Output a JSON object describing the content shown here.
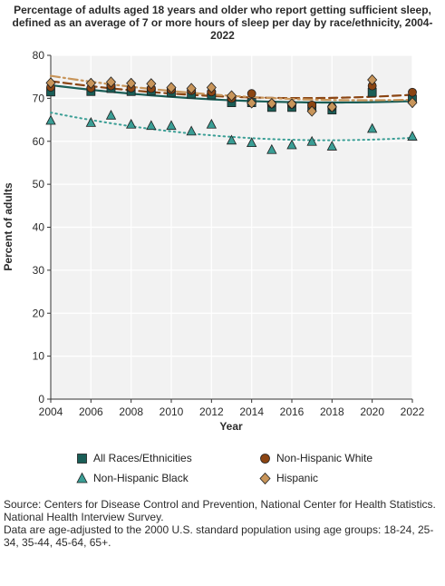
{
  "title": {
    "line1": "Percentage of adults aged 18 years and older who report getting sufficient sleep,",
    "line2": "defined as an average of 7 or more hours of sleep per day by race/ethnicity, 2004-",
    "line3": "2022"
  },
  "footnote": {
    "line1": "Source: Centers for Disease Control and Prevention, National Center for Health Statistics.",
    "line2": "National Health Interview Survey.",
    "line3": "Data are age-adjusted to the 2000 U.S. standard population using age groups: 18-24, 25-",
    "line4": "34, 35-44, 45-64, 65+."
  },
  "chart_data": {
    "type": "scatter",
    "xlabel": "Year",
    "ylabel": "Percent of adults",
    "xlim": [
      2004,
      2022
    ],
    "ylim": [
      0,
      80
    ],
    "xticks": [
      "2004",
      "2006",
      "2008",
      "2010",
      "2012",
      "2014",
      "2016",
      "2018",
      "2020",
      "2022"
    ],
    "yticks": [
      "0",
      "10",
      "20",
      "30",
      "40",
      "50",
      "60",
      "70",
      "80"
    ],
    "grid": true,
    "legend_position": "bottom",
    "trendlines": true,
    "series": [
      {
        "name": "All Races/Ethnicities",
        "marker": "square",
        "color": "#1a5e57",
        "trend_style": "solid",
        "x": [
          2004,
          2006,
          2007,
          2008,
          2009,
          2010,
          2011,
          2012,
          2013,
          2014,
          2015,
          2016,
          2017,
          2018,
          2020,
          2022
        ],
        "y": [
          71.5,
          71.6,
          72.3,
          71.6,
          71.7,
          71.4,
          71.0,
          70.8,
          69.0,
          69.0,
          67.9,
          67.9,
          68.0,
          67.3,
          71.4,
          69.8
        ]
      },
      {
        "name": "Non-Hispanic White",
        "marker": "circle",
        "color": "#8b4513",
        "trend_style": "dashed",
        "x": [
          2004,
          2006,
          2007,
          2008,
          2009,
          2010,
          2011,
          2012,
          2013,
          2014,
          2015,
          2016,
          2017,
          2018,
          2020,
          2022
        ],
        "y": [
          72.6,
          72.4,
          72.9,
          72.4,
          72.3,
          72.0,
          71.8,
          71.5,
          70.0,
          71.1,
          68.7,
          68.6,
          68.4,
          68.0,
          72.9,
          71.4
        ]
      },
      {
        "name": "Non-Hispanic Black",
        "marker": "triangle",
        "color": "#3a9e95",
        "trend_style": "dotted",
        "x": [
          2004,
          2006,
          2007,
          2008,
          2009,
          2010,
          2011,
          2012,
          2013,
          2014,
          2015,
          2016,
          2017,
          2018,
          2020,
          2022
        ],
        "y": [
          64.8,
          64.3,
          66.0,
          63.9,
          63.6,
          63.6,
          62.3,
          63.9,
          60.2,
          59.6,
          58.0,
          59.1,
          59.9,
          58.8,
          62.9,
          61.1
        ]
      },
      {
        "name": "Hispanic",
        "marker": "diamond",
        "color": "#c8955a",
        "trend_style": "dashdot",
        "x": [
          2004,
          2006,
          2007,
          2008,
          2009,
          2010,
          2011,
          2012,
          2013,
          2014,
          2015,
          2016,
          2017,
          2018,
          2020,
          2022
        ],
        "y": [
          73.6,
          73.5,
          73.8,
          73.5,
          73.4,
          72.5,
          72.3,
          72.5,
          70.6,
          68.9,
          68.8,
          68.7,
          67.0,
          68.0,
          74.3,
          69.0
        ]
      }
    ]
  }
}
